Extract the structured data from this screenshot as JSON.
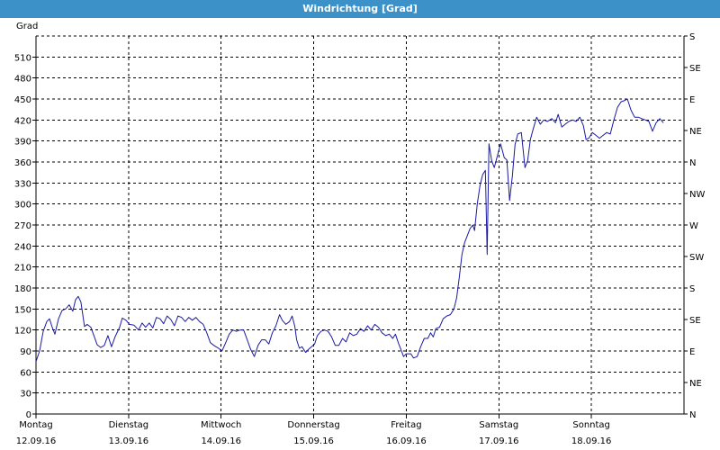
{
  "window": {
    "title": "Windrichtung [Grad]"
  },
  "colors": {
    "title_bar": "#3c92c8",
    "line": "#1a1aa6",
    "grid": "#000000"
  },
  "chart_data": {
    "type": "line",
    "title": "Windrichtung [Grad]",
    "ylabel": "Grad",
    "ylim": [
      0,
      540
    ],
    "y_ticks": [
      0,
      30,
      60,
      90,
      120,
      150,
      180,
      210,
      240,
      270,
      300,
      330,
      360,
      390,
      420,
      450,
      480,
      510
    ],
    "right_axis_ticks": [
      {
        "value": 0,
        "label": "N"
      },
      {
        "value": 45,
        "label": "NE"
      },
      {
        "value": 90,
        "label": "E"
      },
      {
        "value": 135,
        "label": "SE"
      },
      {
        "value": 180,
        "label": "S"
      },
      {
        "value": 225,
        "label": "SW"
      },
      {
        "value": 270,
        "label": "W"
      },
      {
        "value": 315,
        "label": "NW"
      },
      {
        "value": 360,
        "label": "N"
      },
      {
        "value": 405,
        "label": "NE"
      },
      {
        "value": 450,
        "label": "E"
      },
      {
        "value": 495,
        "label": "SE"
      },
      {
        "value": 540,
        "label": "S"
      }
    ],
    "x_range_days": [
      0,
      7
    ],
    "x_ticks": [
      {
        "day": 0,
        "weekday": "Montag",
        "date": "12.09.16"
      },
      {
        "day": 1,
        "weekday": "Dienstag",
        "date": "13.09.16"
      },
      {
        "day": 2,
        "weekday": "Mittwoch",
        "date": "14.09.16"
      },
      {
        "day": 3,
        "weekday": "Donnerstag",
        "date": "15.09.16"
      },
      {
        "day": 4,
        "weekday": "Freitag",
        "date": "16.09.16"
      },
      {
        "day": 5,
        "weekday": "Samstag",
        "date": "17.09.16"
      },
      {
        "day": 6,
        "weekday": "Sonntag",
        "date": "18.09.16"
      }
    ],
    "grid": true,
    "series": [
      {
        "color": "#1a1aa6",
        "points": [
          [
            0.0,
            75
          ],
          [
            0.039,
            90
          ],
          [
            0.078,
            118
          ],
          [
            0.117,
            132
          ],
          [
            0.146,
            136
          ],
          [
            0.175,
            124
          ],
          [
            0.204,
            114
          ],
          [
            0.243,
            136
          ],
          [
            0.282,
            148
          ],
          [
            0.32,
            150
          ],
          [
            0.359,
            156
          ],
          [
            0.398,
            147
          ],
          [
            0.427,
            163
          ],
          [
            0.456,
            168
          ],
          [
            0.485,
            160
          ],
          [
            0.524,
            125
          ],
          [
            0.553,
            128
          ],
          [
            0.592,
            124
          ],
          [
            0.631,
            110
          ],
          [
            0.66,
            99
          ],
          [
            0.699,
            95
          ],
          [
            0.738,
            98
          ],
          [
            0.777,
            112
          ],
          [
            0.816,
            96
          ],
          [
            0.854,
            110
          ],
          [
            0.903,
            124
          ],
          [
            0.932,
            137
          ],
          [
            0.971,
            134
          ],
          [
            1.01,
            128
          ],
          [
            1.058,
            127
          ],
          [
            1.107,
            120
          ],
          [
            1.146,
            130
          ],
          [
            1.184,
            124
          ],
          [
            1.223,
            130
          ],
          [
            1.262,
            123
          ],
          [
            1.301,
            138
          ],
          [
            1.34,
            136
          ],
          [
            1.379,
            129
          ],
          [
            1.417,
            140
          ],
          [
            1.456,
            135
          ],
          [
            1.495,
            126
          ],
          [
            1.534,
            140
          ],
          [
            1.573,
            138
          ],
          [
            1.612,
            132
          ],
          [
            1.65,
            138
          ],
          [
            1.689,
            134
          ],
          [
            1.728,
            138
          ],
          [
            1.767,
            132
          ],
          [
            1.806,
            128
          ],
          [
            1.845,
            116
          ],
          [
            1.883,
            102
          ],
          [
            1.922,
            98
          ],
          [
            1.971,
            94
          ],
          [
            2.01,
            90
          ],
          [
            2.049,
            102
          ],
          [
            2.087,
            114
          ],
          [
            2.126,
            120
          ],
          [
            2.165,
            118
          ],
          [
            2.204,
            120
          ],
          [
            2.243,
            120
          ],
          [
            2.282,
            106
          ],
          [
            2.32,
            92
          ],
          [
            2.359,
            82
          ],
          [
            2.398,
            98
          ],
          [
            2.437,
            106
          ],
          [
            2.476,
            106
          ],
          [
            2.515,
            100
          ],
          [
            2.553,
            116
          ],
          [
            2.592,
            126
          ],
          [
            2.631,
            142
          ],
          [
            2.66,
            134
          ],
          [
            2.699,
            128
          ],
          [
            2.738,
            132
          ],
          [
            2.767,
            140
          ],
          [
            2.796,
            125
          ],
          [
            2.816,
            106
          ],
          [
            2.845,
            94
          ],
          [
            2.874,
            96
          ],
          [
            2.913,
            88
          ],
          [
            2.942,
            92
          ],
          [
            3.01,
            100
          ],
          [
            3.039,
            112
          ],
          [
            3.078,
            118
          ],
          [
            3.117,
            120
          ],
          [
            3.155,
            118
          ],
          [
            3.194,
            110
          ],
          [
            3.233,
            98
          ],
          [
            3.272,
            98
          ],
          [
            3.311,
            108
          ],
          [
            3.349,
            103
          ],
          [
            3.388,
            116
          ],
          [
            3.427,
            112
          ],
          [
            3.466,
            114
          ],
          [
            3.505,
            122
          ],
          [
            3.544,
            118
          ],
          [
            3.583,
            126
          ],
          [
            3.621,
            120
          ],
          [
            3.66,
            128
          ],
          [
            3.699,
            124
          ],
          [
            3.738,
            116
          ],
          [
            3.777,
            112
          ],
          [
            3.816,
            114
          ],
          [
            3.854,
            108
          ],
          [
            3.883,
            114
          ],
          [
            3.913,
            102
          ],
          [
            3.942,
            92
          ],
          [
            3.971,
            82
          ],
          [
            4.0,
            86
          ],
          [
            4.049,
            86
          ],
          [
            4.078,
            80
          ],
          [
            4.117,
            82
          ],
          [
            4.155,
            96
          ],
          [
            4.194,
            108
          ],
          [
            4.233,
            108
          ],
          [
            4.262,
            116
          ],
          [
            4.291,
            110
          ],
          [
            4.32,
            122
          ],
          [
            4.359,
            124
          ],
          [
            4.398,
            136
          ],
          [
            4.437,
            140
          ],
          [
            4.476,
            142
          ],
          [
            4.515,
            150
          ],
          [
            4.544,
            166
          ],
          [
            4.573,
            196
          ],
          [
            4.602,
            228
          ],
          [
            4.631,
            245
          ],
          [
            4.66,
            255
          ],
          [
            4.689,
            265
          ],
          [
            4.718,
            270
          ],
          [
            4.738,
            262
          ],
          [
            4.767,
            300
          ],
          [
            4.796,
            326
          ],
          [
            4.825,
            342
          ],
          [
            4.854,
            348
          ],
          [
            4.874,
            228
          ],
          [
            4.893,
            386
          ],
          [
            4.922,
            362
          ],
          [
            4.951,
            352
          ],
          [
            4.99,
            372
          ],
          [
            5.019,
            386
          ],
          [
            5.058,
            366
          ],
          [
            5.087,
            363
          ],
          [
            5.116,
            305
          ],
          [
            5.146,
            340
          ],
          [
            5.175,
            385
          ],
          [
            5.204,
            400
          ],
          [
            5.243,
            402
          ],
          [
            5.282,
            352
          ],
          [
            5.311,
            362
          ],
          [
            5.34,
            392
          ],
          [
            5.369,
            406
          ],
          [
            5.408,
            424
          ],
          [
            5.447,
            414
          ],
          [
            5.485,
            420
          ],
          [
            5.524,
            418
          ],
          [
            5.573,
            422
          ],
          [
            5.612,
            416
          ],
          [
            5.641,
            428
          ],
          [
            5.68,
            410
          ],
          [
            5.718,
            414
          ],
          [
            5.757,
            418
          ],
          [
            5.796,
            420
          ],
          [
            5.835,
            418
          ],
          [
            5.874,
            424
          ],
          [
            5.913,
            412
          ],
          [
            5.942,
            392
          ],
          [
            5.971,
            394
          ],
          [
            6.01,
            402
          ],
          [
            6.049,
            398
          ],
          [
            6.087,
            394
          ],
          [
            6.126,
            398
          ],
          [
            6.165,
            402
          ],
          [
            6.204,
            400
          ],
          [
            6.243,
            420
          ],
          [
            6.282,
            438
          ],
          [
            6.32,
            446
          ],
          [
            6.359,
            448
          ],
          [
            6.388,
            450
          ],
          [
            6.427,
            434
          ],
          [
            6.466,
            424
          ],
          [
            6.505,
            424
          ],
          [
            6.544,
            422
          ],
          [
            6.583,
            420
          ],
          [
            6.621,
            418
          ],
          [
            6.66,
            404
          ],
          [
            6.699,
            416
          ],
          [
            6.738,
            422
          ],
          [
            6.777,
            416
          ]
        ]
      }
    ]
  }
}
